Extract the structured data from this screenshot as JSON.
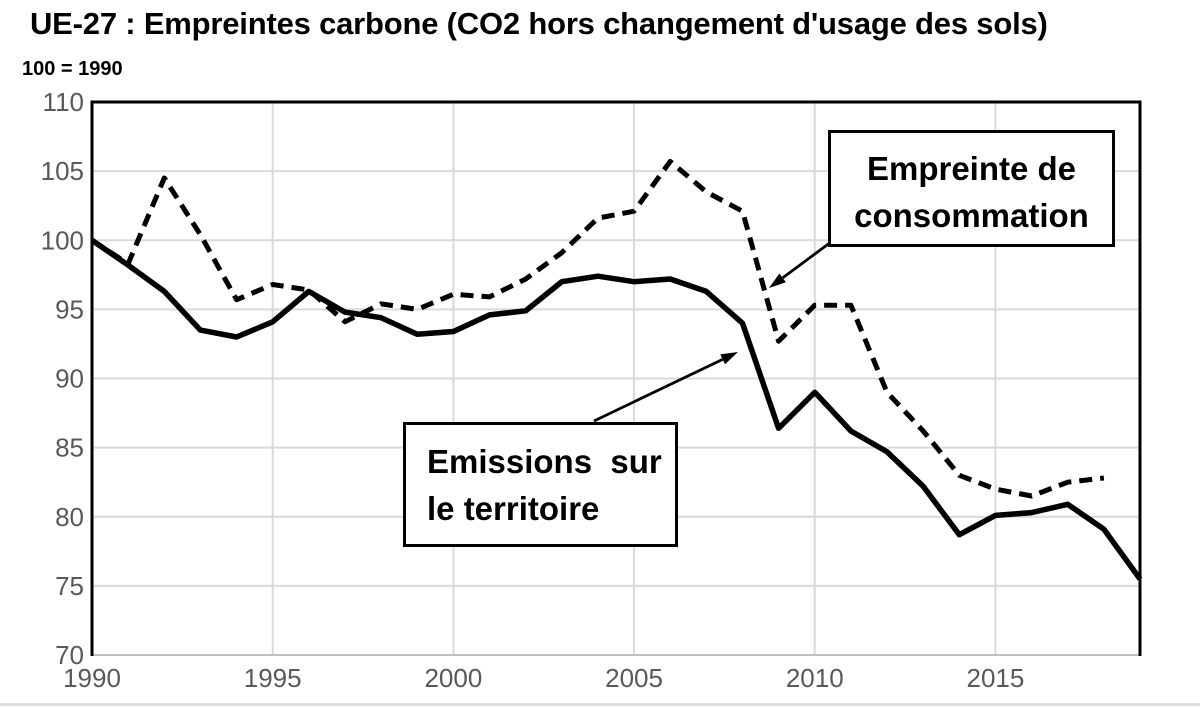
{
  "header": {
    "title": "UE-27 : Empreintes carbone (CO2 hors changement d'usage des sols)",
    "subtitle": "100 = 1990"
  },
  "colors": {
    "line": "#000000",
    "grid": "#d9d9d9",
    "axis_border": "#bfbfbf",
    "tick_label": "#595959",
    "annotation_border": "#000000",
    "annotation_bg": "#ffffff"
  },
  "chart_data": {
    "type": "line",
    "title": "UE-27 : Empreintes carbone (CO2 hors changement d'usage des sols)",
    "subtitle": "100 = 1990",
    "xlabel": "",
    "ylabel": "100 = 1990",
    "xlim": [
      1990,
      2019
    ],
    "ylim": [
      70,
      110
    ],
    "xticks": [
      1990,
      1995,
      2000,
      2005,
      2010,
      2015
    ],
    "yticks": [
      70,
      75,
      80,
      85,
      90,
      95,
      100,
      105,
      110
    ],
    "grid": true,
    "legend_position": "inline-annotations",
    "x": [
      1990,
      1991,
      1992,
      1993,
      1994,
      1995,
      1996,
      1997,
      1998,
      1999,
      2000,
      2001,
      2002,
      2003,
      2004,
      2005,
      2006,
      2007,
      2008,
      2009,
      2010,
      2011,
      2012,
      2013,
      2014,
      2015,
      2016,
      2017,
      2018,
      2019
    ],
    "series": [
      {
        "name": "Empreinte de consommation",
        "style": "dashed",
        "values": [
          100.0,
          98.3,
          104.5,
          100.4,
          95.7,
          96.8,
          96.4,
          94.1,
          95.4,
          95.0,
          96.1,
          95.9,
          97.2,
          99.1,
          101.6,
          102.1,
          105.7,
          103.5,
          102.1,
          92.7,
          95.3,
          95.3,
          89.0,
          86.2,
          83.0,
          82.0,
          81.5,
          82.5,
          82.8,
          null
        ]
      },
      {
        "name": "Emissions sur le territoire",
        "style": "solid",
        "values": [
          100.0,
          98.2,
          96.3,
          93.5,
          93.0,
          94.1,
          96.3,
          94.8,
          94.4,
          93.2,
          93.4,
          94.6,
          94.9,
          97.0,
          97.4,
          97.0,
          97.2,
          96.3,
          94.0,
          86.4,
          89.0,
          86.2,
          84.7,
          82.2,
          78.7,
          80.1,
          80.3,
          80.9,
          79.1,
          75.5
        ]
      }
    ],
    "annotations": [
      {
        "id": "consommation",
        "lines": [
          "Empreinte de",
          "consommation"
        ],
        "points_to_series": "Empreinte de consommation"
      },
      {
        "id": "territoire",
        "lines": [
          "Emissions  sur",
          "le territoire"
        ],
        "points_to_series": "Emissions sur le territoire"
      }
    ]
  }
}
